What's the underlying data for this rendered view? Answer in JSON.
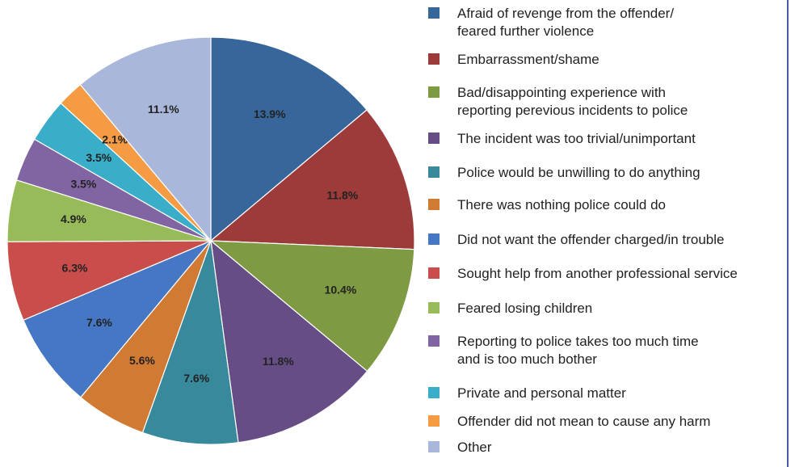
{
  "chart_data": {
    "type": "pie",
    "slices": [
      {
        "label": "Afraid of revenge from the offender/\nfeared further violence",
        "value": 13.9,
        "display": "13.9%",
        "color": "#37669a"
      },
      {
        "label": "Embarrassment/shame",
        "value": 11.8,
        "display": "11.8%",
        "color": "#9c3b3a"
      },
      {
        "label": "Bad/disappointing experience with\nreporting perevious incidents to police",
        "value": 10.4,
        "display": "10.4%",
        "color": "#7e9a43"
      },
      {
        "label": "The incident was too trivial/unimportant",
        "value": 11.8,
        "display": "11.8%",
        "color": "#674d86"
      },
      {
        "label": "Police would be unwilling to do anything",
        "value": 7.6,
        "display": "7.6%",
        "color": "#37899b"
      },
      {
        "label": "There was nothing police could do",
        "value": 5.6,
        "display": "5.6%",
        "color": "#d07a34"
      },
      {
        "label": "Did not want the offender charged/in trouble",
        "value": 7.6,
        "display": "7.6%",
        "color": "#4577c4"
      },
      {
        "label": "Sought help from another professional service",
        "value": 6.3,
        "display": "6.3%",
        "color": "#c84d4b"
      },
      {
        "label": "Feared losing children",
        "value": 4.9,
        "display": "4.9%",
        "color": "#98bb59"
      },
      {
        "label": "Reporting to police takes too much time\nand is too much bother",
        "value": 3.5,
        "display": "3.5%",
        "color": "#8165a3"
      },
      {
        "label": "Private and personal matter",
        "value": 3.5,
        "display": "3.5%",
        "color": "#3aadc8"
      },
      {
        "label": "Offender did not mean to cause any harm",
        "value": 2.1,
        "display": "2.1%",
        "color": "#f59b44"
      },
      {
        "label": "Other",
        "value": 11.1,
        "display": "11.1%",
        "color": "#a9b8da"
      }
    ],
    "legend_position": "right"
  }
}
